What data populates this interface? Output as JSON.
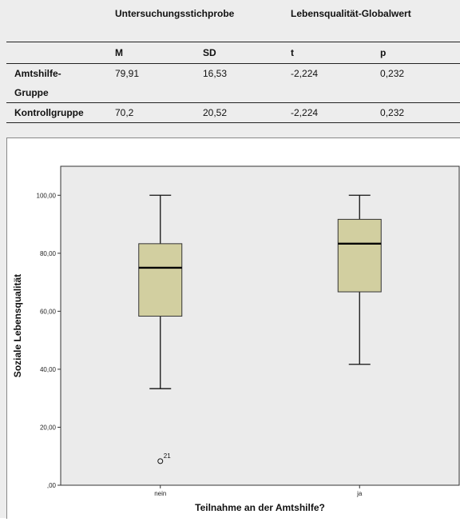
{
  "table": {
    "header": [
      "",
      "Untersuchungsstichprobe",
      "",
      "Lebensqualität-Globalwert",
      ""
    ],
    "subheader": [
      "",
      "M",
      "SD",
      "t",
      "p"
    ],
    "rows": [
      {
        "label_line1": "Amtshilfe-",
        "label_line2": "Gruppe",
        "M": "79,91",
        "SD": "16,53",
        "t": "-2,224",
        "p": "0,232"
      },
      {
        "label_line1": "Kontrollgruppe",
        "label_line2": "",
        "M": "70,2",
        "SD": "20,52",
        "t": "-2,224",
        "p": "0,232"
      }
    ]
  },
  "chart_data": {
    "type": "boxplot",
    "title": "",
    "xlabel": "Teilnahme an der Amtshilfe?",
    "ylabel": "Soziale Lebensqualität",
    "ylim": [
      0,
      110
    ],
    "yticks": [
      0,
      20,
      40,
      60,
      80,
      100
    ],
    "ytick_labels": [
      ",00",
      "20,00",
      "40,00",
      "60,00",
      "80,00",
      "100,00"
    ],
    "categories": [
      "nein",
      "ja"
    ],
    "boxes": [
      {
        "category": "nein",
        "whisker_low": 33.3,
        "q1": 58.3,
        "median": 75.0,
        "q3": 83.3,
        "whisker_high": 100.0,
        "outliers": [
          {
            "value": 8.3,
            "label": "21"
          }
        ]
      },
      {
        "category": "ja",
        "whisker_low": 41.7,
        "q1": 66.7,
        "median": 83.3,
        "q3": 91.7,
        "whisker_high": 100.0,
        "outliers": []
      }
    ],
    "box_color": "#d2cfa0",
    "plot_bg": "#ebebeb",
    "grid": false,
    "legend": "none"
  }
}
